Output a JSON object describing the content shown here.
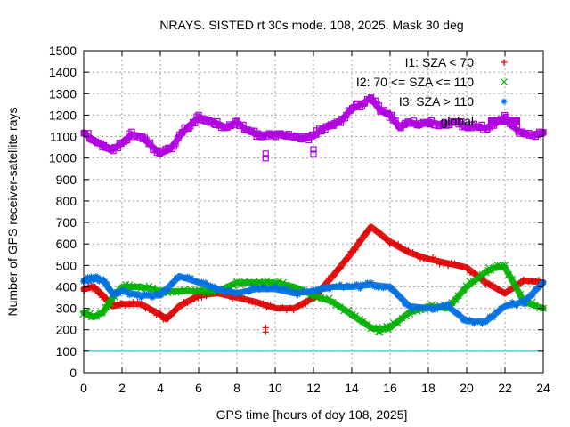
{
  "chart_data": {
    "type": "scatter",
    "title": "NRAYS. SISTED rt 30s mode. 108, 2025. Mask 30 deg",
    "xlabel": "GPS time [hours of doy 108, 2025]",
    "ylabel": "Number of GPS receiver-satellite rays",
    "xlim": [
      0,
      24
    ],
    "ylim": [
      0,
      1500
    ],
    "xticks": [
      0,
      2,
      4,
      6,
      8,
      10,
      12,
      14,
      16,
      18,
      20,
      22,
      24
    ],
    "yticks": [
      0,
      100,
      200,
      300,
      400,
      500,
      600,
      700,
      800,
      900,
      1000,
      1100,
      1200,
      1300,
      1400,
      1500
    ],
    "grid": true,
    "legend_position": "top-right",
    "reference_line": {
      "y": 100,
      "color": "#00c0d0"
    },
    "series": [
      {
        "name": "I1: SZA < 70",
        "marker": "+",
        "color": "#e00000",
        "x": [
          0,
          0.5,
          1,
          1.5,
          2,
          3,
          4,
          4.3,
          5,
          6,
          7,
          8,
          9,
          10,
          11,
          12,
          13,
          14,
          15,
          16,
          17,
          18,
          19,
          20,
          21,
          22,
          23,
          24
        ],
        "y": [
          390,
          400,
          360,
          310,
          320,
          320,
          270,
          250,
          310,
          360,
          370,
          350,
          330,
          300,
          300,
          350,
          450,
          560,
          680,
          610,
          560,
          530,
          510,
          490,
          420,
          370,
          430,
          420
        ],
        "outliers": [
          {
            "x": 9.5,
            "y": 210
          }
        ]
      },
      {
        "name": "I2: 70 <= SZA <= 110",
        "marker": "x",
        "color": "#00b000",
        "x": [
          0,
          0.5,
          1,
          1.5,
          2,
          3,
          4,
          5,
          6,
          7,
          8,
          9,
          10,
          11,
          12,
          13,
          14,
          15,
          15.5,
          16,
          17,
          18,
          19,
          20,
          21,
          21.5,
          22,
          23,
          24
        ],
        "y": [
          280,
          260,
          280,
          350,
          400,
          400,
          380,
          380,
          380,
          380,
          420,
          420,
          420,
          400,
          360,
          330,
          270,
          210,
          200,
          210,
          280,
          310,
          300,
          400,
          470,
          490,
          490,
          330,
          300
        ]
      },
      {
        "name": "I3: SZA > 110",
        "marker": "*",
        "color": "#0070e0",
        "x": [
          0,
          0.5,
          1,
          1.5,
          2,
          3,
          4,
          5,
          6,
          7,
          8,
          9,
          10,
          11,
          12,
          13,
          14,
          15,
          16,
          17,
          18,
          19,
          20,
          21,
          22,
          23,
          24
        ],
        "y": [
          430,
          440,
          430,
          370,
          380,
          360,
          360,
          450,
          420,
          390,
          370,
          390,
          390,
          370,
          380,
          400,
          400,
          410,
          400,
          310,
          300,
          310,
          240,
          240,
          310,
          330,
          420
        ]
      },
      {
        "name": "global",
        "marker": "square",
        "color": "#b000e0",
        "x": [
          0,
          0.5,
          1,
          1.5,
          2,
          2.5,
          3,
          3.5,
          4,
          4.5,
          5,
          5.5,
          6,
          6.5,
          7,
          7.5,
          8,
          8.5,
          9,
          9.5,
          10,
          10.5,
          11,
          11.5,
          12,
          12.5,
          13,
          13.5,
          14,
          14.5,
          15,
          15.5,
          16,
          16.5,
          17,
          17.5,
          18,
          18.5,
          19,
          19.5,
          20,
          20.5,
          21,
          21.5,
          22,
          22.5,
          23,
          23.5,
          24
        ],
        "y": [
          1120,
          1080,
          1060,
          1040,
          1070,
          1110,
          1100,
          1060,
          1020,
          1040,
          1100,
          1150,
          1190,
          1180,
          1160,
          1140,
          1170,
          1130,
          1110,
          1110,
          1110,
          1100,
          1100,
          1090,
          1100,
          1140,
          1150,
          1180,
          1230,
          1250,
          1280,
          1220,
          1200,
          1140,
          1170,
          1150,
          1170,
          1160,
          1160,
          1170,
          1140,
          1150,
          1140,
          1160,
          1190,
          1140,
          1110,
          1110,
          1120
        ],
        "outliers": [
          {
            "x": 9.5,
            "y": 1020
          },
          {
            "x": 12,
            "y": 1040
          }
        ]
      }
    ]
  }
}
